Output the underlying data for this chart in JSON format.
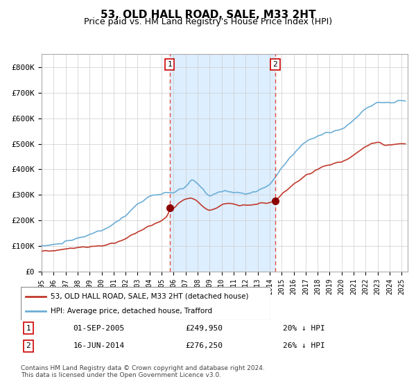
{
  "title": "53, OLD HALL ROAD, SALE, M33 2HT",
  "subtitle": "Price paid vs. HM Land Registry's House Price Index (HPI)",
  "legend_line1": "53, OLD HALL ROAD, SALE, M33 2HT (detached house)",
  "legend_line2": "HPI: Average price, detached house, Trafford",
  "event1_date": "01-SEP-2005",
  "event1_price": 249950,
  "event1_label": "20% ↓ HPI",
  "event1_x": 2005.67,
  "event2_date": "16-JUN-2014",
  "event2_price": 276250,
  "event2_label": "26% ↓ HPI",
  "event2_x": 2014.46,
  "hpi_color": "#6baed6",
  "price_color": "#c0392b",
  "shade_color": "#ddeeff",
  "vline_color": "#e74c3c",
  "footer": "Contains HM Land Registry data © Crown copyright and database right 2024.\nThis data is licensed under the Open Government Licence v3.0.",
  "ylim": [
    0,
    850000
  ],
  "xlim_start": 1995.0,
  "xlim_end": 2025.5
}
